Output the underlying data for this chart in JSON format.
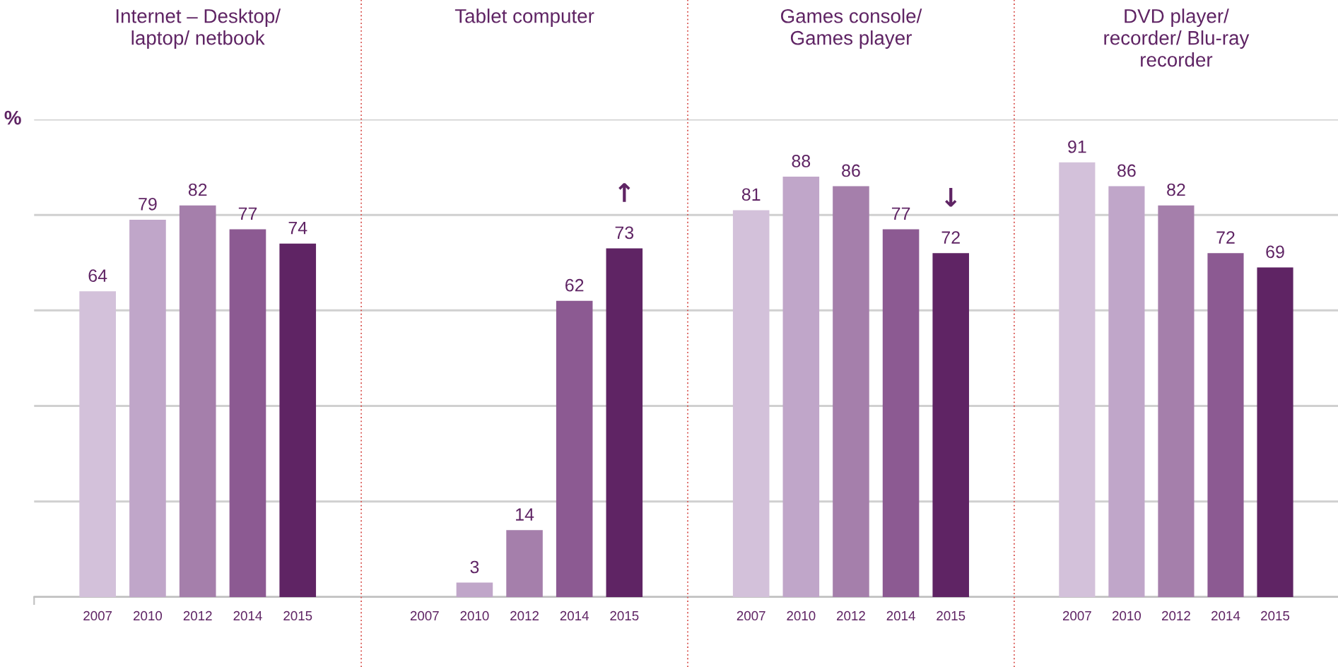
{
  "chart_data": [
    {
      "type": "bar",
      "title": "Internet – Desktop/\nlaptop/ netbook",
      "ylabel": "%",
      "categories": [
        "2007",
        "2010",
        "2012",
        "2014",
        "2015"
      ],
      "values": [
        64,
        79,
        82,
        77,
        74
      ],
      "colors": [
        "#d3c1da",
        "#c0a6c9",
        "#a57fab",
        "#8c5a92",
        "#5f2464"
      ],
      "ylim": [
        0,
        100
      ],
      "yticks": [
        {
          "value": 0,
          "label": null
        },
        {
          "value": 20,
          "label": null
        },
        {
          "value": 40,
          "label": null
        },
        {
          "value": 60,
          "label": null
        },
        {
          "value": 80,
          "label": null
        },
        {
          "value": 100,
          "label": null
        }
      ],
      "grid": "y",
      "data_labels": true,
      "tick_labels": "x"
    },
    {
      "type": "bar",
      "title": "Tablet computer",
      "categories": [
        "2007",
        "2010",
        "2012",
        "2014",
        "2015"
      ],
      "values": [
        null,
        3,
        14,
        62,
        73
      ],
      "colors": [
        "#d3c1da",
        "#c0a6c9",
        "#a57fab",
        "#8c5a92",
        "#5f2464"
      ],
      "ylim": [
        0,
        100
      ],
      "yticks": [
        {
          "value": 0,
          "label": null
        },
        {
          "value": 20,
          "label": null
        },
        {
          "value": 40,
          "label": null
        },
        {
          "value": 60,
          "label": null
        },
        {
          "value": 80,
          "label": null
        },
        {
          "value": 100,
          "label": null
        }
      ],
      "grid": "y",
      "data_labels": true,
      "tick_labels": "x",
      "annotations": [
        {
          "text": "↑",
          "x": "2015",
          "y": 73
        }
      ]
    },
    {
      "type": "bar",
      "title": "Games console/\nGames player",
      "categories": [
        "2007",
        "2010",
        "2012",
        "2014",
        "2015"
      ],
      "values": [
        81,
        88,
        86,
        77,
        72
      ],
      "colors": [
        "#d3c1da",
        "#c0a6c9",
        "#a57fab",
        "#8c5a92",
        "#5f2464"
      ],
      "ylim": [
        0,
        100
      ],
      "yticks": [
        {
          "value": 0,
          "label": null
        },
        {
          "value": 20,
          "label": null
        },
        {
          "value": 40,
          "label": null
        },
        {
          "value": 60,
          "label": null
        },
        {
          "value": 80,
          "label": null
        },
        {
          "value": 100,
          "label": null
        }
      ],
      "grid": "y",
      "data_labels": true,
      "tick_labels": "x",
      "annotations": [
        {
          "text": "↓",
          "x": "2015",
          "y": 72
        }
      ]
    },
    {
      "type": "bar",
      "title": "DVD player/\nrecorder/ Blu-ray\nrecorder",
      "categories": [
        "2007",
        "2010",
        "2012",
        "2014",
        "2015"
      ],
      "values": [
        91,
        86,
        82,
        72,
        69
      ],
      "colors": [
        "#d3c1da",
        "#c0a6c9",
        "#a57fab",
        "#8c5a92",
        "#5f2464"
      ],
      "ylim": [
        0,
        100
      ],
      "yticks": [
        {
          "value": 0,
          "label": null
        },
        {
          "value": 20,
          "label": null
        },
        {
          "value": 40,
          "label": null
        },
        {
          "value": 60,
          "label": null
        },
        {
          "value": 80,
          "label": null
        },
        {
          "value": 100,
          "label": null
        }
      ],
      "grid": "y",
      "data_labels": true,
      "tick_labels": "x"
    }
  ]
}
